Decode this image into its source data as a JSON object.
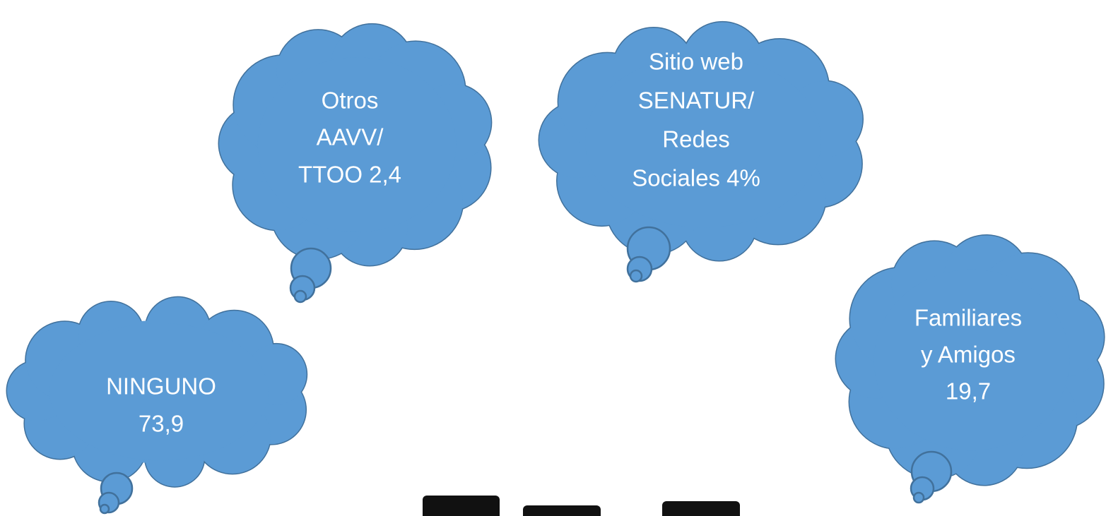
{
  "callouts": [
    {
      "lines": [
        "Otros",
        "AAVV/",
        "TTOO 2,4"
      ]
    },
    {
      "lines": [
        "Sitio web",
        "SENATUR/",
        "Redes",
        "Sociales 4%"
      ]
    },
    {
      "lines": [
        "Familiares",
        "y Amigos",
        "19,7"
      ]
    },
    {
      "lines": [
        "NINGUNO",
        "73,9"
      ]
    }
  ]
}
